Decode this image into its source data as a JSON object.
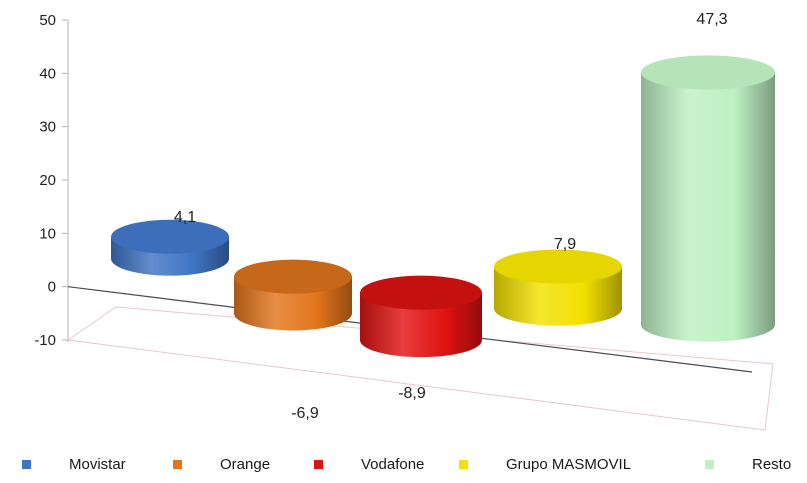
{
  "chart_data": {
    "type": "bar",
    "categories": [
      "Movistar",
      "Orange",
      "Vodafone",
      "Grupo MASMOVIL",
      "Resto"
    ],
    "values": [
      4.1,
      -6.9,
      -8.9,
      7.9,
      47.3
    ],
    "value_labels": [
      "4,1",
      "-6,9",
      "-8,9",
      "7,9",
      "47,3"
    ],
    "colors": [
      "#3f74c4",
      "#e2751c",
      "#e01212",
      "#f3e000",
      "#bdf0c2"
    ],
    "ylim": [
      -10,
      50
    ],
    "yticks": [
      -10,
      0,
      10,
      20,
      30,
      40,
      50
    ],
    "grid": false,
    "legend": "bottom",
    "style": "3d-cylinder",
    "title": "",
    "xlabel": "",
    "ylabel": ""
  }
}
